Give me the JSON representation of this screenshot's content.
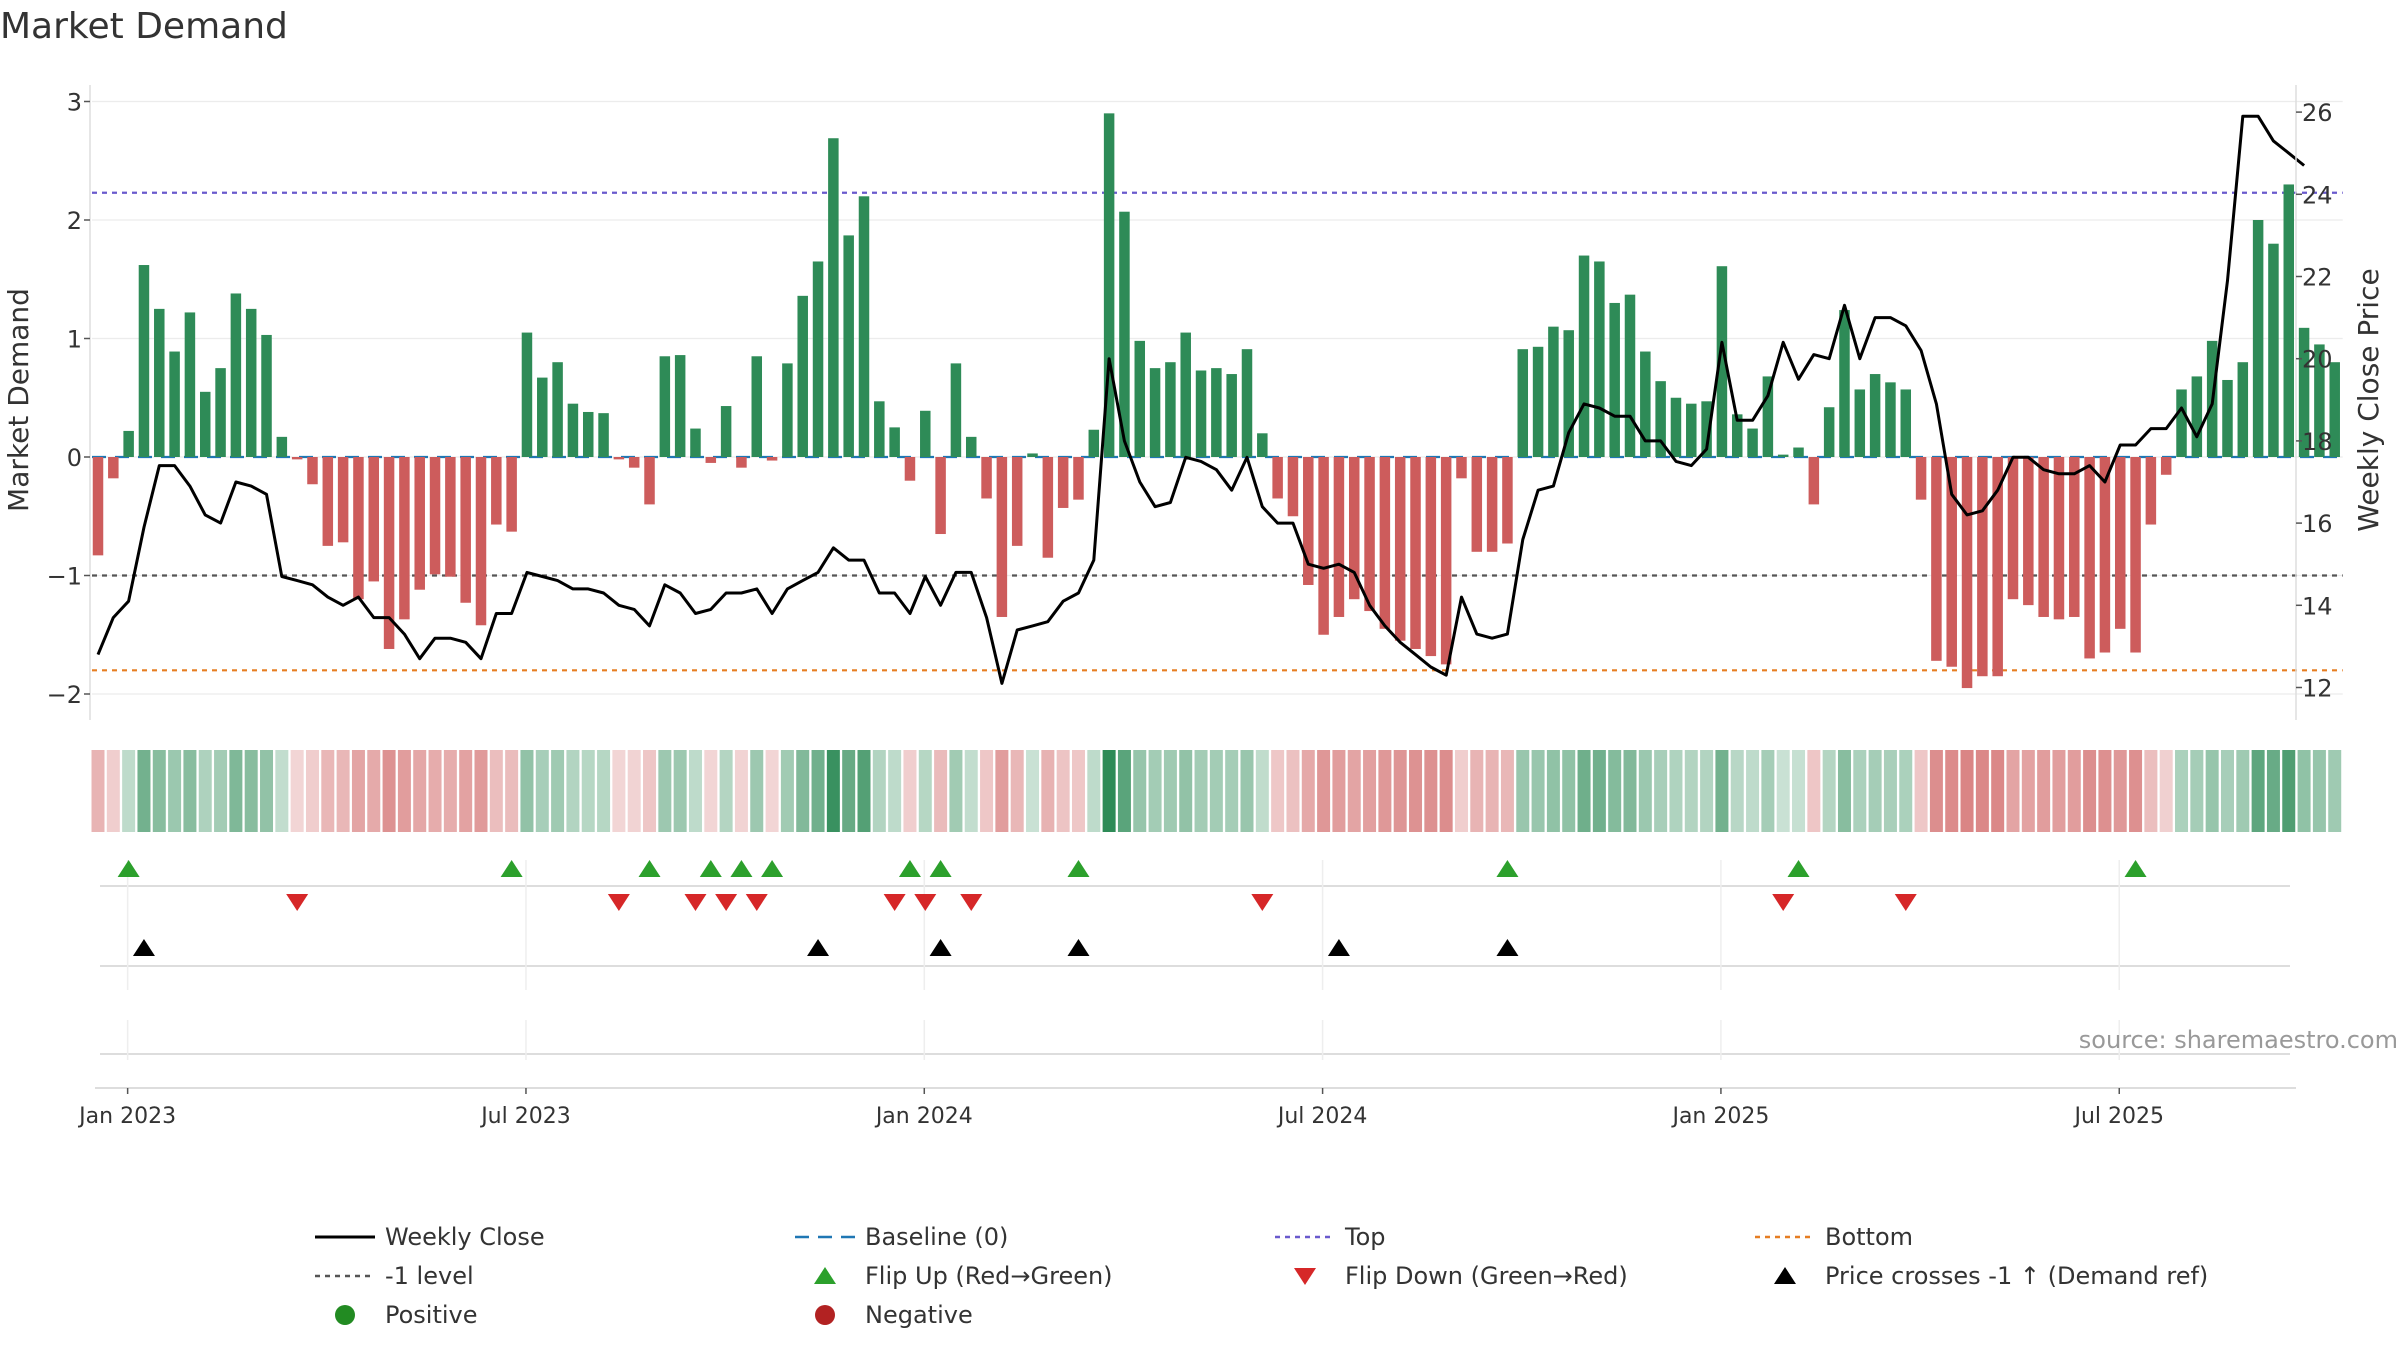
{
  "title": "Market Demand",
  "source": "source: sharemaestro.com",
  "colors": {
    "green": "#2e8b57",
    "red": "#cd5c5c",
    "price": "#000000",
    "baseline": "#1f77b4",
    "top": "#6a5acd",
    "minus1": "#555555",
    "bottom": "#e67e22",
    "flip_up": "#2ca02c",
    "flip_down": "#d62728"
  },
  "chart_data": {
    "type": "bar",
    "title": "Market Demand",
    "ylabel": "Market Demand",
    "y2label": "Weekly Close Price",
    "ylim": [
      -2.2,
      3.15
    ],
    "y2lim": [
      11.5,
      26.5
    ],
    "yticks": [
      {
        "v": 3,
        "label": "3"
      },
      {
        "v": 2,
        "label": "2"
      },
      {
        "v": 1,
        "label": "1"
      },
      {
        "v": 0,
        "label": "0"
      },
      {
        "v": -1,
        "label": "−1"
      },
      {
        "v": -2,
        "label": "−2"
      }
    ],
    "y2ticks": [
      {
        "v": 26,
        "label": "26"
      },
      {
        "v": 24,
        "label": "24"
      },
      {
        "v": 22,
        "label": "22"
      },
      {
        "v": 20,
        "label": "20"
      },
      {
        "v": 18,
        "label": "18"
      },
      {
        "v": 16,
        "label": "16"
      },
      {
        "v": 14,
        "label": "14"
      },
      {
        "v": 12,
        "label": "12"
      }
    ],
    "xticks": [
      {
        "i": 2,
        "label": "Jan 2023"
      },
      {
        "i": 28,
        "label": "Jul 2023"
      },
      {
        "i": 54,
        "label": "Jan 2024"
      },
      {
        "i": 80,
        "label": "Jul 2024"
      },
      {
        "i": 106,
        "label": "Jan 2025"
      },
      {
        "i": 132,
        "label": "Jul 2025"
      }
    ],
    "reference_lines": {
      "baseline": 0,
      "top": 2.23,
      "minus1": -1,
      "bottom": -1.8
    },
    "demand": [
      -0.83,
      -0.18,
      0.22,
      1.62,
      1.25,
      0.89,
      1.22,
      0.55,
      0.75,
      1.38,
      1.25,
      1.03,
      0.17,
      -0.02,
      -0.23,
      -0.75,
      -0.72,
      -1.2,
      -1.05,
      -1.62,
      -1.37,
      -1.12,
      -0.99,
      -1.01,
      -1.23,
      -1.42,
      -0.57,
      -0.63,
      1.05,
      0.67,
      0.8,
      0.45,
      0.38,
      0.37,
      -0.02,
      -0.09,
      -0.4,
      0.85,
      0.86,
      0.24,
      -0.05,
      0.43,
      -0.09,
      0.85,
      -0.03,
      0.79,
      1.36,
      1.65,
      2.69,
      1.87,
      2.2,
      0.47,
      0.25,
      -0.2,
      0.39,
      -0.65,
      0.79,
      0.17,
      -0.35,
      -1.35,
      -0.75,
      0.03,
      -0.85,
      -0.43,
      -0.36,
      0.23,
      2.9,
      2.07,
      0.98,
      0.75,
      0.8,
      1.05,
      0.73,
      0.75,
      0.7,
      0.91,
      0.2,
      -0.35,
      -0.5,
      -1.08,
      -1.5,
      -1.35,
      -1.2,
      -1.3,
      -1.45,
      -1.55,
      -1.62,
      -1.68,
      -1.75,
      -0.18,
      -0.8,
      -0.8,
      -0.73,
      0.91,
      0.93,
      1.1,
      1.07,
      1.7,
      1.65,
      1.3,
      1.37,
      0.89,
      0.64,
      0.5,
      0.45,
      0.47,
      1.61,
      0.36,
      0.24,
      0.68,
      0.02,
      0.08,
      -0.4,
      0.42,
      1.24,
      0.57,
      0.7,
      0.63,
      0.57,
      -0.36,
      -1.72,
      -1.77,
      -1.95,
      -1.85,
      -1.85,
      -1.2,
      -1.25,
      -1.35,
      -1.37,
      -1.35,
      -1.7,
      -1.65,
      -1.45,
      -1.65,
      -0.57,
      -0.15,
      0.57,
      0.68,
      0.98,
      0.65,
      0.8,
      2.0,
      1.8,
      2.3,
      1.09,
      0.95,
      0.8
    ],
    "price": [
      12.8,
      13.7,
      14.1,
      15.9,
      17.4,
      17.4,
      16.9,
      16.2,
      16.0,
      17.0,
      16.9,
      16.7,
      14.7,
      14.6,
      14.5,
      14.2,
      14.0,
      14.2,
      13.7,
      13.7,
      13.3,
      12.7,
      13.2,
      13.2,
      13.1,
      12.7,
      13.8,
      13.8,
      14.8,
      14.7,
      14.6,
      14.4,
      14.4,
      14.3,
      14.0,
      13.9,
      13.5,
      14.5,
      14.3,
      13.8,
      13.9,
      14.3,
      14.3,
      14.4,
      13.8,
      14.4,
      14.6,
      14.8,
      15.4,
      15.1,
      15.1,
      14.3,
      14.3,
      13.8,
      14.7,
      14.0,
      14.8,
      14.8,
      13.7,
      12.1,
      13.4,
      13.5,
      13.6,
      14.1,
      14.3,
      15.1,
      20.0,
      18.0,
      17.0,
      16.4,
      16.5,
      17.6,
      17.5,
      17.3,
      16.8,
      17.6,
      16.4,
      16.0,
      16.0,
      15.0,
      14.9,
      15.0,
      14.8,
      14.0,
      13.5,
      13.1,
      12.8,
      12.5,
      12.3,
      14.2,
      13.3,
      13.2,
      13.3,
      15.6,
      16.8,
      16.9,
      18.2,
      18.9,
      18.8,
      18.6,
      18.6,
      18.0,
      18.0,
      17.5,
      17.4,
      17.8,
      20.4,
      18.5,
      18.5,
      19.1,
      20.4,
      19.5,
      20.1,
      20.0,
      21.3,
      20.0,
      21.0,
      21.0,
      20.8,
      20.2,
      18.9,
      16.7,
      16.2,
      16.3,
      16.8,
      17.6,
      17.6,
      17.3,
      17.2,
      17.2,
      17.4,
      17.0,
      17.9,
      17.9,
      18.3,
      18.3,
      18.8,
      18.1,
      18.9,
      21.9,
      25.9,
      25.9,
      25.3,
      25.0,
      24.7
    ],
    "flip_up": [
      2,
      27,
      36,
      40,
      42,
      44,
      53,
      55,
      64,
      92,
      111,
      133
    ],
    "flip_down": [
      13,
      34,
      39,
      41,
      43,
      52,
      54,
      57,
      76,
      110,
      118
    ],
    "price_cross": [
      3,
      47,
      55,
      64,
      81,
      92
    ]
  },
  "legend": [
    {
      "label": "Weekly Close",
      "sym": "line",
      "color": "#000000"
    },
    {
      "label": "Baseline (0)",
      "sym": "dashed",
      "color": "#1f77b4"
    },
    {
      "label": "Top",
      "sym": "dotted",
      "color": "#6a5acd"
    },
    {
      "label": "Bottom",
      "sym": "dotted",
      "color": "#e67e22"
    },
    {
      "label": "-1 level",
      "sym": "dotted",
      "color": "#555555"
    },
    {
      "label": "Flip Up (Red→Green)",
      "sym": "tri-up",
      "color": "#2ca02c"
    },
    {
      "label": "Flip Down (Green→Red)",
      "sym": "tri-down",
      "color": "#d62728"
    },
    {
      "label": "Price crosses -1 ↑ (Demand ref)",
      "sym": "tri-up",
      "color": "#000000"
    },
    {
      "label": "Positive",
      "sym": "circle",
      "color": "#228b22"
    },
    {
      "label": "Negative",
      "sym": "circle",
      "color": "#b22222"
    }
  ]
}
